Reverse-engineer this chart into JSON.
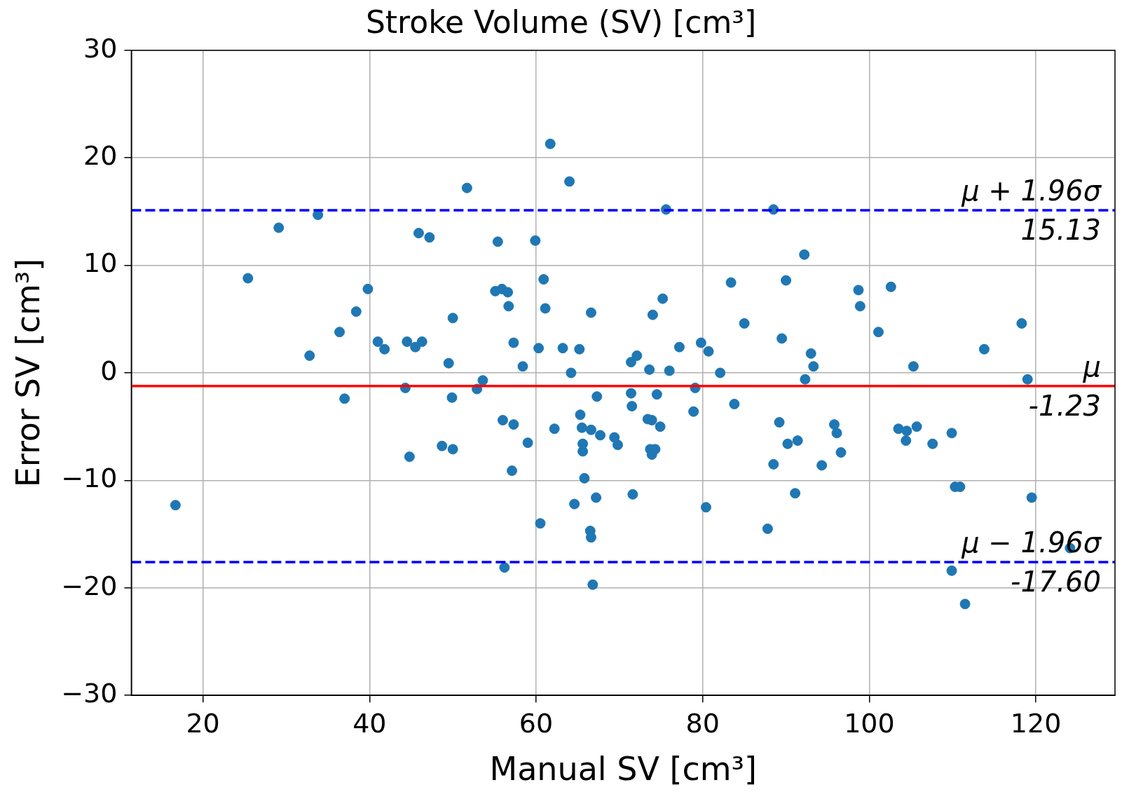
{
  "chart_data": {
    "type": "scatter",
    "title": "Stroke Volume (SV) [cm³]",
    "xlabel": "Manual SV [cm³]",
    "ylabel": "Error SV [cm³]",
    "xlim": [
      11.4,
      129.5
    ],
    "xticks": [
      20,
      40,
      60,
      80,
      100,
      120
    ],
    "ylim": [
      -30,
      30
    ],
    "yticks": [
      -30,
      -20,
      -10,
      0,
      10,
      20,
      30
    ],
    "grid": true,
    "marker": "circle",
    "series": [
      {
        "color": "#1f77b4",
        "x": [
          16.7,
          25.4,
          29.1,
          32.8,
          33.8,
          36.4,
          37.0,
          38.4,
          39.8,
          41.0,
          41.8,
          44.3,
          44.5,
          44.8,
          45.5,
          45.9,
          46.3,
          47.2,
          48.7,
          49.5,
          49.9,
          50.0,
          50.0,
          51.7,
          52.9,
          53.6,
          55.1,
          55.4,
          55.9,
          56.0,
          56.2,
          56.6,
          56.7,
          57.1,
          57.3,
          57.3,
          58.4,
          59.0,
          59.9,
          60.3,
          60.5,
          60.9,
          61.1,
          61.7,
          62.2,
          63.2,
          64.0,
          64.2,
          64.6,
          65.2,
          65.3,
          65.5,
          65.6,
          65.6,
          65.8,
          66.5,
          66.6,
          66.6,
          66.6,
          66.8,
          67.2,
          67.3,
          67.7,
          69.4,
          69.8,
          71.4,
          71.4,
          71.5,
          71.6,
          72.1,
          73.4,
          73.6,
          73.7,
          73.9,
          73.9,
          74.0,
          74.3,
          74.5,
          74.9,
          75.2,
          75.6,
          76.0,
          77.2,
          78.9,
          79.1,
          79.8,
          80.4,
          80.7,
          82.1,
          83.4,
          83.8,
          85.0,
          87.8,
          88.5,
          88.5,
          89.2,
          89.5,
          90.0,
          90.2,
          91.1,
          91.4,
          92.2,
          92.3,
          93.0,
          93.3,
          94.3,
          95.8,
          96.1,
          96.6,
          98.7,
          98.9,
          101.1,
          102.6,
          103.5,
          104.4,
          104.5,
          105.3,
          105.7,
          107.6,
          109.9,
          109.9,
          110.3,
          110.9,
          111.5,
          113.8,
          118.3,
          119.0,
          119.5,
          124.1
        ],
        "values": [
          -12.3,
          8.8,
          13.5,
          1.6,
          14.7,
          3.8,
          -2.4,
          5.7,
          7.8,
          2.9,
          2.2,
          -1.4,
          2.9,
          -7.8,
          2.4,
          13.0,
          2.9,
          12.6,
          -6.8,
          0.9,
          -2.3,
          5.1,
          -7.1,
          17.2,
          -1.5,
          -0.7,
          7.6,
          12.2,
          7.8,
          -4.4,
          -18.1,
          7.5,
          6.2,
          -9.1,
          2.8,
          -4.8,
          0.6,
          -6.5,
          12.3,
          2.3,
          -14.0,
          8.7,
          6.0,
          21.3,
          -5.2,
          2.3,
          17.8,
          0.0,
          -12.2,
          2.2,
          -3.9,
          -5.1,
          -6.6,
          -7.3,
          -9.8,
          -14.7,
          -15.3,
          -5.3,
          5.6,
          -19.7,
          -11.6,
          -2.2,
          -5.8,
          -6.0,
          -6.7,
          1.0,
          -1.9,
          -3.1,
          -11.3,
          1.6,
          -4.3,
          0.3,
          -7.1,
          -4.4,
          -7.6,
          5.4,
          -7.1,
          -2.0,
          -5.0,
          6.9,
          15.2,
          0.2,
          2.4,
          -3.6,
          -1.4,
          2.8,
          -12.5,
          2.0,
          0.0,
          8.4,
          -2.9,
          4.6,
          -14.5,
          -8.5,
          15.2,
          -4.6,
          3.2,
          8.6,
          -6.6,
          -11.2,
          -6.3,
          11.0,
          -0.6,
          1.8,
          0.6,
          -8.6,
          -4.8,
          -5.6,
          -7.4,
          7.7,
          6.2,
          3.8,
          8.0,
          -5.2,
          -6.3,
          -5.4,
          0.6,
          -5.0,
          -6.6,
          -5.6,
          -18.4,
          -10.6,
          -10.6,
          -21.5,
          2.2,
          4.6,
          -0.6,
          -11.6,
          -16.3
        ]
      }
    ],
    "ref_lines": [
      {
        "axis": "y",
        "value": 15.13,
        "label": "μ + 1.96σ\n15.13",
        "color": "#0000ff",
        "line_style": "dashed"
      },
      {
        "axis": "y",
        "value": -1.23,
        "label": "μ\n-1.23",
        "color": "#ff0000",
        "line_style": "solid"
      },
      {
        "axis": "y",
        "value": -17.6,
        "label": "μ − 1.96σ\n-17.60",
        "color": "#0000ff",
        "line_style": "dashed"
      }
    ]
  }
}
